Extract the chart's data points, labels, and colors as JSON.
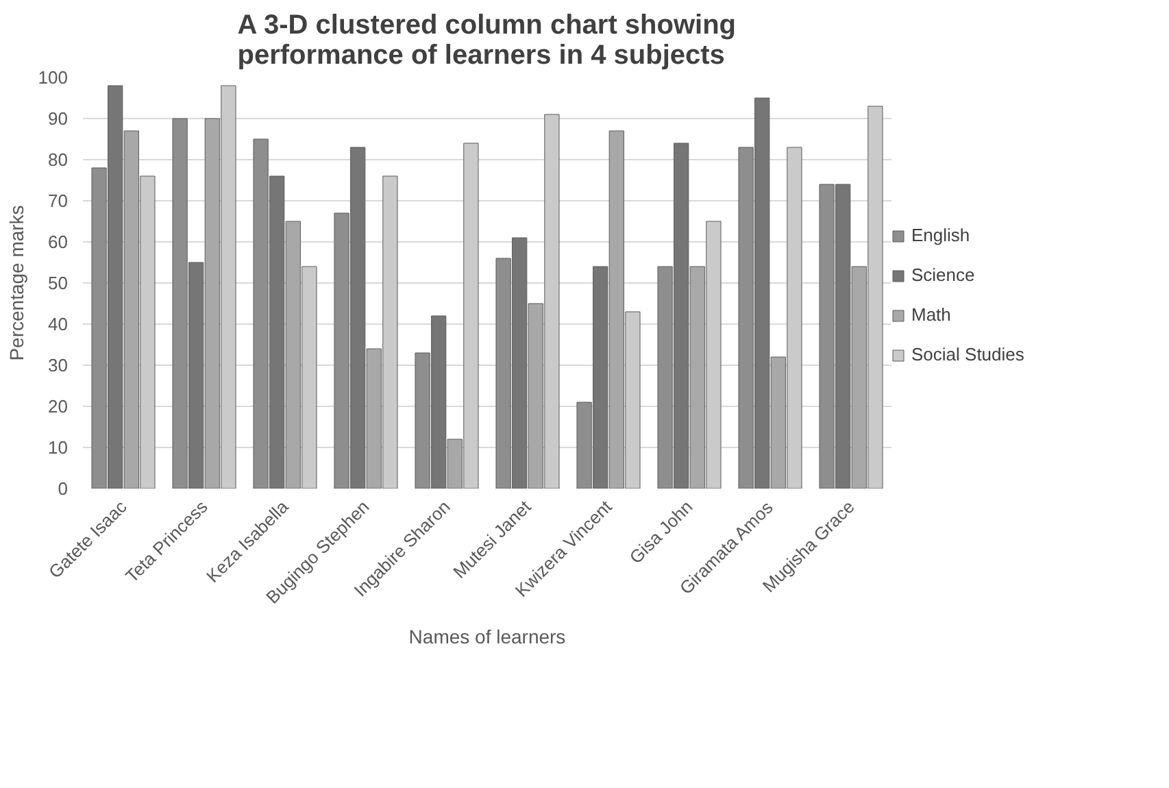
{
  "chart_data": {
    "type": "bar",
    "title": "A 3-D clustered column chart showing performance of learners in 4 subjects",
    "xlabel": "Names of learners",
    "ylabel": "Percentage marks",
    "categories": [
      "Gatete Isaac",
      "Teta Princess",
      "Keza Isabella",
      "Bugingo Stephen",
      "Ingabire Sharon",
      "Mutesi Janet",
      "Kwizera Vincent",
      "Gisa John",
      "Giramata Amos",
      "Mugisha Grace"
    ],
    "series": [
      {
        "name": "English",
        "color": "#8e8e8e",
        "values": [
          78,
          90,
          85,
          67,
          33,
          56,
          21,
          54,
          83,
          74
        ]
      },
      {
        "name": "Science",
        "color": "#767676",
        "values": [
          98,
          55,
          76,
          83,
          42,
          61,
          54,
          84,
          95,
          74
        ]
      },
      {
        "name": "Math",
        "color": "#a8a8a8",
        "values": [
          87,
          90,
          65,
          34,
          12,
          45,
          87,
          54,
          32,
          54
        ]
      },
      {
        "name": "Social Studies",
        "color": "#cacaca",
        "values": [
          76,
          98,
          54,
          76,
          84,
          91,
          43,
          65,
          83,
          93
        ]
      }
    ],
    "ylim": [
      0,
      100
    ],
    "yticks": [
      0,
      10,
      20,
      30,
      40,
      50,
      60,
      70,
      80,
      90,
      100
    ],
    "grid": "y",
    "legend": "right"
  }
}
